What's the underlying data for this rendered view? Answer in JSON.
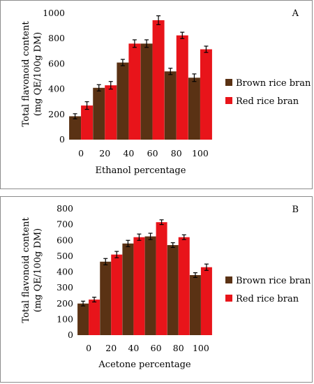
{
  "colors": {
    "brown": "#5a3214",
    "red": "#e8141a",
    "error_bar": "#000000"
  },
  "chart_data": [
    {
      "type": "bar",
      "panel": "A",
      "ylabel": [
        "Total flavonoid content",
        "(mg QE/100g DM)"
      ],
      "xlabel": "Ethanol percentage",
      "categories": [
        "0",
        "20",
        "40",
        "60",
        "80",
        "100"
      ],
      "ylim": [
        0,
        1000
      ],
      "yticks": [
        "0",
        "200",
        "400",
        "600",
        "800",
        "1000"
      ],
      "ytick_values": [
        0,
        200,
        400,
        600,
        800,
        1000
      ],
      "legend_position": "right",
      "series": [
        {
          "name": "Brown rice bran",
          "color": "#5a3214",
          "values": [
            185,
            410,
            610,
            760,
            540,
            490
          ],
          "errors": [
            20,
            25,
            25,
            30,
            25,
            30
          ]
        },
        {
          "name": "Red rice bran",
          "color": "#e8141a",
          "values": [
            270,
            430,
            760,
            945,
            825,
            715
          ],
          "errors": [
            30,
            30,
            30,
            35,
            25,
            25
          ]
        }
      ]
    },
    {
      "type": "bar",
      "panel": "B",
      "ylabel": [
        "Total flavonoid content",
        "(mg QE/100g DM)"
      ],
      "xlabel": "Acetone percentage",
      "categories": [
        "0",
        "20",
        "40",
        "60",
        "80",
        "100"
      ],
      "ylim": [
        0,
        800
      ],
      "yticks": [
        "0",
        "100",
        "200",
        "300",
        "400",
        "500",
        "600",
        "700",
        "800"
      ],
      "ytick_values": [
        0,
        100,
        200,
        300,
        400,
        500,
        600,
        700,
        800
      ],
      "legend_position": "right",
      "series": [
        {
          "name": "Brown rice bran",
          "color": "#5a3214",
          "values": [
            200,
            465,
            580,
            625,
            570,
            380
          ],
          "errors": [
            15,
            20,
            20,
            20,
            15,
            15
          ]
        },
        {
          "name": "Red rice bran",
          "color": "#e8141a",
          "values": [
            225,
            510,
            620,
            715,
            620,
            430
          ],
          "errors": [
            15,
            20,
            20,
            15,
            15,
            20
          ]
        }
      ]
    }
  ]
}
